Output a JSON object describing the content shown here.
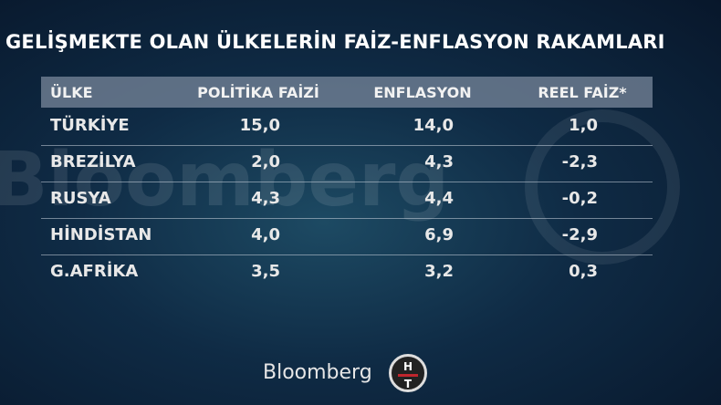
{
  "header": {
    "title": "GELİŞMEKTE OLAN ÜLKELERİN FAİZ-ENFLASYON RAKAMLARI"
  },
  "table": {
    "columns": [
      "ÜLKE",
      "POLİTİKA FAİZİ",
      "ENFLASYON",
      "REEL FAİZ*"
    ],
    "rows": [
      [
        "TÜRKİYE",
        "15,0",
        "14,0",
        "1,0"
      ],
      [
        "BREZİLYA",
        "2,0",
        "4,3",
        "-2,3"
      ],
      [
        "RUSYA",
        "4,3",
        "4,4",
        "-0,2"
      ],
      [
        "HİNDİSTAN",
        "4,0",
        "6,9",
        "-2,9"
      ],
      [
        "G.AFRİKA",
        "3,5",
        "3,2",
        "0,3"
      ]
    ]
  },
  "footer": {
    "brand": "Bloomberg",
    "logo_top": "H",
    "logo_bottom": "T"
  }
}
